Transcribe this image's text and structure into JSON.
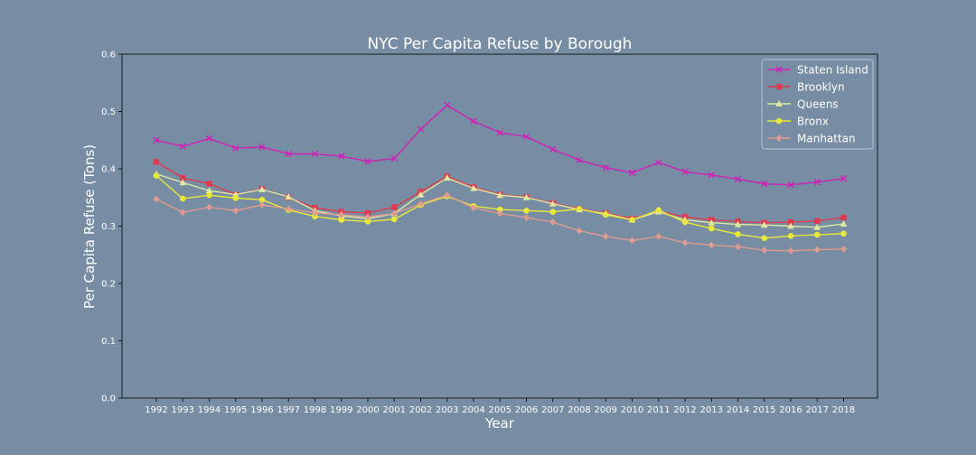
{
  "chart_data": {
    "type": "line",
    "title": "NYC Per Capita Refuse by Borough",
    "xlabel": "Year",
    "ylabel": "Per Capita Refuse (Tons)",
    "ylim": [
      0,
      0.6
    ],
    "yticks": [
      "0.0",
      "0.1",
      "0.2",
      "0.3",
      "0.4",
      "0.5",
      "0.6"
    ],
    "x": [
      1992,
      1993,
      1994,
      1995,
      1996,
      1997,
      1998,
      1999,
      2000,
      2001,
      2002,
      2003,
      2004,
      2005,
      2006,
      2007,
      2008,
      2009,
      2010,
      2011,
      2012,
      2013,
      2014,
      2015,
      2016,
      2017,
      2018
    ],
    "xticks": [
      "1992",
      "1993",
      "1994",
      "1995",
      "1996",
      "1997",
      "1998",
      "1999",
      "2000",
      "2001",
      "2002",
      "2003",
      "2004",
      "2005",
      "2006",
      "2007",
      "2008",
      "2009",
      "2010",
      "2011",
      "2012",
      "2013",
      "2014",
      "2015",
      "2016",
      "2017",
      "2018"
    ],
    "grid": false,
    "legend_position": "top-right",
    "series": [
      {
        "name": "Staten Island",
        "color": "#d020b8",
        "marker": "x",
        "values": [
          0.45,
          0.439,
          0.453,
          0.436,
          0.438,
          0.426,
          0.426,
          0.422,
          0.413,
          0.418,
          0.469,
          0.511,
          0.483,
          0.463,
          0.456,
          0.434,
          0.415,
          0.402,
          0.393,
          0.411,
          0.395,
          0.389,
          0.382,
          0.374,
          0.372,
          0.377,
          0.383
        ]
      },
      {
        "name": "Brooklyn",
        "color": "#e03a50",
        "marker": "square",
        "values": [
          0.412,
          0.384,
          0.374,
          0.355,
          0.365,
          0.35,
          0.332,
          0.325,
          0.323,
          0.333,
          0.36,
          0.387,
          0.368,
          0.355,
          0.351,
          0.34,
          0.33,
          0.323,
          0.313,
          0.326,
          0.316,
          0.311,
          0.308,
          0.306,
          0.307,
          0.309,
          0.315
        ]
      },
      {
        "name": "Queens",
        "color": "#dde8a0",
        "marker": "triangle",
        "values": [
          0.391,
          0.376,
          0.362,
          0.355,
          0.364,
          0.351,
          0.327,
          0.318,
          0.313,
          0.322,
          0.355,
          0.384,
          0.366,
          0.354,
          0.35,
          0.339,
          0.329,
          0.322,
          0.311,
          0.325,
          0.311,
          0.306,
          0.303,
          0.302,
          0.3,
          0.298,
          0.304
        ]
      },
      {
        "name": "Bronx",
        "color": "#e8e838",
        "marker": "circle",
        "values": [
          0.388,
          0.348,
          0.354,
          0.349,
          0.346,
          0.328,
          0.317,
          0.311,
          0.308,
          0.312,
          0.337,
          0.352,
          0.335,
          0.329,
          0.327,
          0.325,
          0.33,
          0.32,
          0.311,
          0.328,
          0.307,
          0.296,
          0.286,
          0.279,
          0.283,
          0.285,
          0.287
        ]
      },
      {
        "name": "Manhattan",
        "color": "#e09a90",
        "marker": "diamond",
        "values": [
          0.347,
          0.324,
          0.333,
          0.327,
          0.337,
          0.33,
          0.323,
          0.32,
          0.316,
          0.322,
          0.339,
          0.354,
          0.332,
          0.322,
          0.315,
          0.307,
          0.292,
          0.282,
          0.275,
          0.282,
          0.271,
          0.267,
          0.264,
          0.258,
          0.257,
          0.259,
          0.26
        ]
      }
    ]
  }
}
